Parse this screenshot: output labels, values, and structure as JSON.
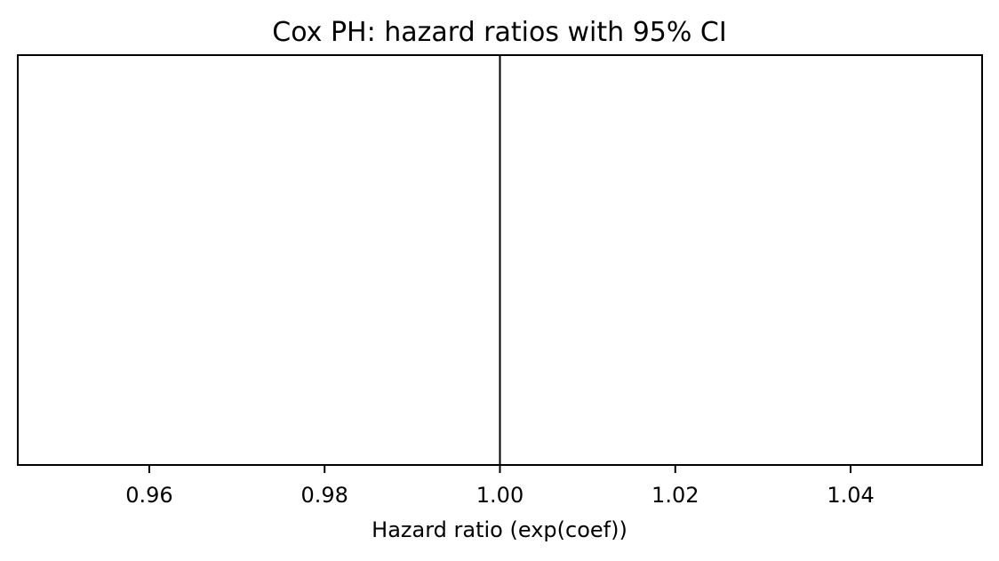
{
  "chart_data": {
    "type": "scatter",
    "title": "Cox PH: hazard ratios with 95% CI",
    "xlabel": "Hazard ratio (exp(coef))",
    "ylabel": "",
    "xlim": [
      0.945,
      1.055
    ],
    "xticks": [
      0.96,
      0.98,
      1.0,
      1.02,
      1.04
    ],
    "xtick_labels": [
      "0.96",
      "0.98",
      "1.00",
      "1.02",
      "1.04"
    ],
    "reference_line": {
      "x": 1.0,
      "color": "#000000"
    },
    "series": [],
    "grid": false
  }
}
